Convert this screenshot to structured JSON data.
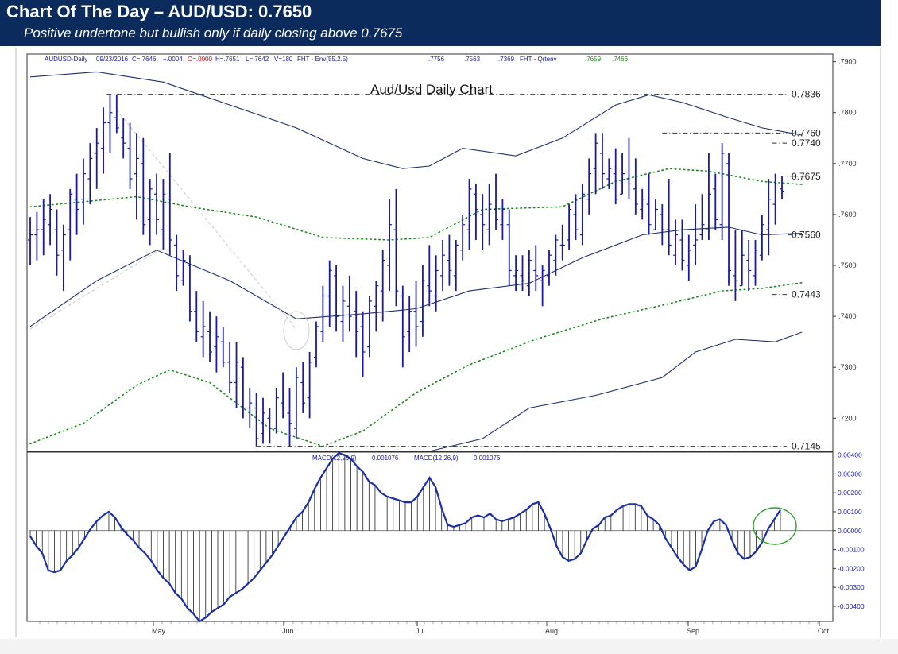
{
  "header": {
    "title": "Chart Of The Day – AUD/USD: 0.7650",
    "subtitle": "Positive undertone but bullish only if daily closing above 0.7675"
  },
  "colors": {
    "header_bg": "#0b2b5c",
    "bars": "#1a1a9e",
    "envelope": "#1f2f6e",
    "qrtenv": "#1d8a1d",
    "macd": "#1a2fa0",
    "circle": "#2e9e2e"
  },
  "chart_data": [
    {
      "type": "ohlc",
      "title": "Aud/Usd Daily Chart",
      "info": {
        "symbol": "AUDUSD-Daily",
        "date": "09/23/2016",
        "close": "C=.7646",
        "change": "+.0004",
        "open": "O=.0000",
        "high": "H=.7651",
        "low": "L=.7642",
        "volume": "V=180",
        "env_label": "FHT - Env(55,2.5)",
        "env_values": [
          ".7756",
          ".7563",
          ".7369"
        ],
        "qrt_label": "FHT - Qrtenv",
        "qrt_values": [
          ".7659",
          ".7466"
        ]
      },
      "ylim": [
        0.7135,
        0.7915
      ],
      "y_ticks": [
        ".7900",
        ".7800",
        ".7700",
        ".7600",
        ".7500",
        ".7400",
        ".7300",
        ".7200"
      ],
      "x_labels": [
        "May",
        "Jun",
        "Jul",
        "Aug",
        "Sep",
        "Oct"
      ],
      "levels": [
        {
          "label": "0.7836",
          "value": 0.7836
        },
        {
          "label": "0.7760",
          "value": 0.776
        },
        {
          "label": "0.7740",
          "value": 0.774
        },
        {
          "label": "0.7675",
          "value": 0.7675
        },
        {
          "label": "0.7560",
          "value": 0.756
        },
        {
          "label": "0.7443",
          "value": 0.7443
        },
        {
          "label": "0.7145",
          "value": 0.7145
        }
      ],
      "bars_note": "approximate daily OHLC read from bars; x = trading-day index",
      "bars": [
        [
          0.755,
          0.7595,
          0.75,
          0.756
        ],
        [
          0.756,
          0.7605,
          0.751,
          0.757
        ],
        [
          0.757,
          0.763,
          0.752,
          0.759
        ],
        [
          0.758,
          0.764,
          0.754,
          0.761
        ],
        [
          0.757,
          0.761,
          0.748,
          0.752
        ],
        [
          0.753,
          0.758,
          0.745,
          0.756
        ],
        [
          0.757,
          0.765,
          0.751,
          0.764
        ],
        [
          0.763,
          0.768,
          0.756,
          0.761
        ],
        [
          0.763,
          0.771,
          0.758,
          0.768
        ],
        [
          0.767,
          0.774,
          0.762,
          0.771
        ],
        [
          0.772,
          0.777,
          0.765,
          0.774
        ],
        [
          0.773,
          0.781,
          0.768,
          0.778
        ],
        [
          0.778,
          0.7836,
          0.772,
          0.78
        ],
        [
          0.779,
          0.7836,
          0.776,
          0.777
        ],
        [
          0.775,
          0.779,
          0.771,
          0.774
        ],
        [
          0.773,
          0.778,
          0.765,
          0.767
        ],
        [
          0.768,
          0.776,
          0.759,
          0.771
        ],
        [
          0.77,
          0.775,
          0.756,
          0.758
        ],
        [
          0.759,
          0.767,
          0.754,
          0.765
        ],
        [
          0.764,
          0.768,
          0.756,
          0.759
        ],
        [
          0.757,
          0.767,
          0.753,
          0.764
        ],
        [
          0.763,
          0.772,
          0.752,
          0.755
        ],
        [
          0.754,
          0.756,
          0.745,
          0.748
        ],
        [
          0.747,
          0.753,
          0.746,
          0.751
        ],
        [
          0.75,
          0.752,
          0.739,
          0.741
        ],
        [
          0.741,
          0.745,
          0.735,
          0.737
        ],
        [
          0.736,
          0.743,
          0.732,
          0.738
        ],
        [
          0.737,
          0.741,
          0.731,
          0.733
        ],
        [
          0.734,
          0.74,
          0.729,
          0.736
        ],
        [
          0.735,
          0.738,
          0.73,
          0.731
        ],
        [
          0.731,
          0.735,
          0.725,
          0.727
        ],
        [
          0.727,
          0.735,
          0.722,
          0.731
        ],
        [
          0.73,
          0.732,
          0.72,
          0.722
        ],
        [
          0.722,
          0.726,
          0.718,
          0.723
        ],
        [
          0.722,
          0.725,
          0.7145,
          0.716
        ],
        [
          0.717,
          0.724,
          0.715,
          0.721
        ],
        [
          0.72,
          0.722,
          0.715,
          0.718
        ],
        [
          0.718,
          0.726,
          0.717,
          0.724
        ],
        [
          0.723,
          0.729,
          0.72,
          0.722
        ],
        [
          0.721,
          0.726,
          0.7145,
          0.719
        ],
        [
          0.718,
          0.73,
          0.716,
          0.728
        ],
        [
          0.727,
          0.731,
          0.721,
          0.723
        ],
        [
          0.724,
          0.733,
          0.72,
          0.731
        ],
        [
          0.732,
          0.739,
          0.73,
          0.738
        ],
        [
          0.737,
          0.746,
          0.735,
          0.744
        ],
        [
          0.744,
          0.751,
          0.738,
          0.749
        ],
        [
          0.748,
          0.75,
          0.737,
          0.74
        ],
        [
          0.739,
          0.746,
          0.735,
          0.743
        ],
        [
          0.742,
          0.748,
          0.737,
          0.74
        ],
        [
          0.741,
          0.745,
          0.732,
          0.737
        ],
        [
          0.738,
          0.741,
          0.728,
          0.733
        ],
        [
          0.734,
          0.744,
          0.732,
          0.743
        ],
        [
          0.742,
          0.747,
          0.737,
          0.746
        ],
        [
          0.745,
          0.753,
          0.739,
          0.751
        ],
        [
          0.75,
          0.763,
          0.745,
          0.758
        ],
        [
          0.757,
          0.765,
          0.742,
          0.745
        ],
        [
          0.744,
          0.746,
          0.73,
          0.736
        ],
        [
          0.737,
          0.744,
          0.733,
          0.741
        ],
        [
          0.741,
          0.747,
          0.734,
          0.738
        ],
        [
          0.739,
          0.75,
          0.736,
          0.747
        ],
        [
          0.746,
          0.754,
          0.742,
          0.745
        ],
        [
          0.744,
          0.752,
          0.741,
          0.749
        ],
        [
          0.748,
          0.755,
          0.745,
          0.752
        ],
        [
          0.751,
          0.756,
          0.746,
          0.749
        ],
        [
          0.748,
          0.755,
          0.745,
          0.754
        ],
        [
          0.753,
          0.76,
          0.751,
          0.758
        ],
        [
          0.757,
          0.767,
          0.753,
          0.765
        ],
        [
          0.764,
          0.766,
          0.755,
          0.761
        ],
        [
          0.76,
          0.764,
          0.753,
          0.758
        ],
        [
          0.757,
          0.766,
          0.754,
          0.762
        ],
        [
          0.761,
          0.768,
          0.757,
          0.759
        ],
        [
          0.758,
          0.763,
          0.755,
          0.761
        ],
        [
          0.758,
          0.761,
          0.746,
          0.749
        ],
        [
          0.748,
          0.752,
          0.745,
          0.749
        ],
        [
          0.748,
          0.752,
          0.745,
          0.747
        ],
        [
          0.746,
          0.753,
          0.744,
          0.751
        ],
        [
          0.749,
          0.754,
          0.745,
          0.748
        ],
        [
          0.747,
          0.75,
          0.742,
          0.749
        ],
        [
          0.748,
          0.753,
          0.746,
          0.752
        ],
        [
          0.751,
          0.756,
          0.748,
          0.755
        ],
        [
          0.754,
          0.758,
          0.751,
          0.754
        ],
        [
          0.755,
          0.762,
          0.753,
          0.761
        ],
        [
          0.76,
          0.764,
          0.755,
          0.757
        ],
        [
          0.756,
          0.766,
          0.754,
          0.764
        ],
        [
          0.763,
          0.771,
          0.76,
          0.768
        ],
        [
          0.769,
          0.776,
          0.764,
          0.774
        ],
        [
          0.772,
          0.776,
          0.765,
          0.768
        ],
        [
          0.767,
          0.771,
          0.765,
          0.769
        ],
        [
          0.768,
          0.773,
          0.762,
          0.763
        ],
        [
          0.764,
          0.772,
          0.764,
          0.768
        ],
        [
          0.767,
          0.775,
          0.763,
          0.766
        ],
        [
          0.765,
          0.771,
          0.76,
          0.762
        ],
        [
          0.761,
          0.765,
          0.759,
          0.763
        ],
        [
          0.762,
          0.768,
          0.756,
          0.758
        ],
        [
          0.757,
          0.763,
          0.757,
          0.761
        ],
        [
          0.76,
          0.762,
          0.754,
          0.757
        ],
        [
          0.757,
          0.767,
          0.752,
          0.754
        ],
        [
          0.752,
          0.759,
          0.75,
          0.756
        ],
        [
          0.755,
          0.759,
          0.749,
          0.751
        ],
        [
          0.75,
          0.756,
          0.747,
          0.753
        ],
        [
          0.754,
          0.762,
          0.75,
          0.755
        ],
        [
          0.756,
          0.764,
          0.755,
          0.758
        ],
        [
          0.757,
          0.772,
          0.755,
          0.764
        ],
        [
          0.765,
          0.768,
          0.757,
          0.759
        ],
        [
          0.758,
          0.774,
          0.755,
          0.772
        ],
        [
          0.77,
          0.772,
          0.746,
          0.749
        ],
        [
          0.748,
          0.757,
          0.743,
          0.747
        ],
        [
          0.746,
          0.757,
          0.746,
          0.752
        ],
        [
          0.751,
          0.755,
          0.745,
          0.749
        ],
        [
          0.748,
          0.755,
          0.746,
          0.753
        ],
        [
          0.752,
          0.76,
          0.751,
          0.758
        ],
        [
          0.757,
          0.767,
          0.752,
          0.763
        ],
        [
          0.762,
          0.768,
          0.758,
          0.766
        ],
        [
          0.765,
          0.7675,
          0.763,
          0.7646
        ]
      ],
      "envelope": {
        "upper": [
          [
            0,
            0.787
          ],
          [
            10,
            0.788
          ],
          [
            20,
            0.786
          ],
          [
            40,
            0.777
          ],
          [
            50,
            0.771
          ],
          [
            56,
            0.769
          ],
          [
            60,
            0.7695
          ],
          [
            65,
            0.773
          ],
          [
            73,
            0.7715
          ],
          [
            80,
            0.775
          ],
          [
            88,
            0.7815
          ],
          [
            93,
            0.7835
          ],
          [
            98,
            0.782
          ],
          [
            105,
            0.779
          ],
          [
            110,
            0.777
          ],
          [
            116,
            0.7756
          ]
        ],
        "middle": [
          [
            0,
            0.738
          ],
          [
            10,
            0.747
          ],
          [
            19,
            0.753
          ],
          [
            30,
            0.747
          ],
          [
            40,
            0.7395
          ],
          [
            50,
            0.7405
          ],
          [
            58,
            0.7415
          ],
          [
            66,
            0.745
          ],
          [
            75,
            0.7465
          ],
          [
            83,
            0.7515
          ],
          [
            92,
            0.756
          ],
          [
            98,
            0.757
          ],
          [
            105,
            0.7575
          ],
          [
            110,
            0.756
          ],
          [
            116,
            0.7563
          ]
        ],
        "lower": [
          [
            60,
            0.7135
          ],
          [
            68,
            0.716
          ],
          [
            75,
            0.722
          ],
          [
            85,
            0.7245
          ],
          [
            95,
            0.728
          ],
          [
            100,
            0.733
          ],
          [
            106,
            0.7355
          ],
          [
            112,
            0.735
          ],
          [
            116,
            0.7369
          ]
        ]
      },
      "qrtenv": {
        "upper": [
          [
            0,
            0.7615
          ],
          [
            8,
            0.7625
          ],
          [
            16,
            0.7635
          ],
          [
            24,
            0.7615
          ],
          [
            34,
            0.7595
          ],
          [
            44,
            0.7555
          ],
          [
            54,
            0.755
          ],
          [
            60,
            0.7555
          ],
          [
            68,
            0.761
          ],
          [
            80,
            0.7615
          ],
          [
            88,
            0.7665
          ],
          [
            96,
            0.769
          ],
          [
            102,
            0.7685
          ],
          [
            110,
            0.7665
          ],
          [
            116,
            0.7659
          ]
        ],
        "lower": [
          [
            0,
            0.715
          ],
          [
            8,
            0.719
          ],
          [
            16,
            0.7265
          ],
          [
            21,
            0.7295
          ],
          [
            27,
            0.727
          ],
          [
            36,
            0.718
          ],
          [
            44,
            0.7145
          ],
          [
            50,
            0.7175
          ],
          [
            58,
            0.725
          ],
          [
            66,
            0.7305
          ],
          [
            76,
            0.7355
          ],
          [
            86,
            0.7395
          ],
          [
            96,
            0.7425
          ],
          [
            104,
            0.745
          ],
          [
            110,
            0.7455
          ],
          [
            116,
            0.7466
          ]
        ]
      }
    },
    {
      "type": "line",
      "label": "MACD(12,26,9)",
      "values_text": "0.001076",
      "label2": "MACD(12,26,9)",
      "values_text2": "0.001076",
      "ylim": [
        -0.0048,
        0.00415
      ],
      "y_ticks": [
        "0.00400",
        "0.00300",
        "0.00200",
        "0.00100",
        "0.00000",
        "-0.00100",
        "-0.00200",
        "-0.00300",
        "-0.00400"
      ],
      "series": [
        {
          "values": [
            -0.0003,
            -0.0008,
            -0.0012,
            -0.0021,
            -0.0022,
            -0.0021,
            -0.0016,
            -0.0013,
            -0.0009,
            -0.0004,
            0.0001,
            0.0005,
            0.0008,
            0.001,
            0.0007,
            0.0002,
            -0.0002,
            -0.0005,
            -0.0009,
            -0.0012,
            -0.0016,
            -0.0021,
            -0.0025,
            -0.0028,
            -0.0033,
            -0.0036,
            -0.0041,
            -0.0044,
            -0.0048,
            -0.0046,
            -0.0043,
            -0.0041,
            -0.0039,
            -0.0035,
            -0.0033,
            -0.0031,
            -0.0028,
            -0.0025,
            -0.0021,
            -0.0017,
            -0.0013,
            -0.0008,
            -0.0003,
            0.0002,
            0.0007,
            0.001,
            0.0015,
            0.0022,
            0.0028,
            0.0033,
            0.0038,
            0.0041,
            0.004,
            0.0038,
            0.0034,
            0.0031,
            0.0026,
            0.0024,
            0.002,
            0.0018,
            0.0017,
            0.0016,
            0.0015,
            0.0015,
            0.0018,
            0.0023,
            0.0028,
            0.0023,
            0.0012,
            0.0003,
            0.0002,
            0.0003,
            0.0004,
            0.0007,
            0.0008,
            0.0007,
            0.0009,
            0.0006,
            0.0005,
            0.0006,
            0.0007,
            0.0009,
            0.0011,
            0.0014,
            0.0015,
            0.0009,
            0.0001,
            -0.0008,
            -0.0014,
            -0.0016,
            -0.0015,
            -0.0012,
            -0.0005,
            0.0001,
            0.0003,
            0.0007,
            0.0008,
            0.0011,
            0.0013,
            0.0014,
            0.0014,
            0.0013,
            0.0008,
            0.0006,
            0.0003,
            -0.0004,
            -0.0009,
            -0.0014,
            -0.0018,
            -0.0021,
            -0.0019,
            -0.001,
            0,
            0.0005,
            0.0006,
            0.0003,
            -0.0005,
            -0.0012,
            -0.0015,
            -0.0014,
            -0.0011,
            -0.0006,
            0.0001,
            0.0006,
            0.0011
          ]
        }
      ]
    }
  ]
}
